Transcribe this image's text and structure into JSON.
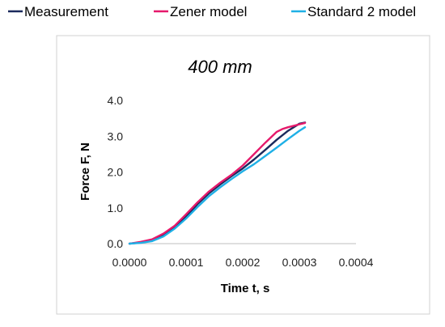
{
  "chart_data": {
    "type": "line",
    "title": "400 mm",
    "xlabel": "Time t, s",
    "ylabel": "Force F, N",
    "xlim": [
      0,
      0.0004
    ],
    "ylim": [
      0,
      4.0
    ],
    "x_ticks": [
      "0.0000",
      "0.0001",
      "0.0002",
      "0.0003",
      "0.0004"
    ],
    "y_ticks": [
      "0.0",
      "1.0",
      "2.0",
      "3.0",
      "4.0"
    ],
    "grid": false,
    "legend_position": "top",
    "series": [
      {
        "name": "Measurement",
        "color": "#1b2a5c",
        "x": [
          0,
          2e-05,
          4e-05,
          6e-05,
          8e-05,
          0.0001,
          0.00012,
          0.00014,
          0.00016,
          0.00018,
          0.0002,
          0.00022,
          0.00024,
          0.00026,
          0.00028,
          0.0003,
          0.00031
        ],
        "y": [
          0,
          0.03,
          0.1,
          0.25,
          0.45,
          0.75,
          1.1,
          1.4,
          1.65,
          1.88,
          2.1,
          2.35,
          2.62,
          2.9,
          3.15,
          3.35,
          3.38
        ]
      },
      {
        "name": "Zener model",
        "color": "#e6196b",
        "x": [
          0,
          2e-05,
          4e-05,
          6e-05,
          8e-05,
          0.0001,
          0.00012,
          0.00014,
          0.00016,
          0.00018,
          0.0002,
          0.00022,
          0.00024,
          0.00026,
          0.00027,
          0.00028,
          0.0003,
          0.00031
        ],
        "y": [
          0,
          0.05,
          0.12,
          0.28,
          0.5,
          0.82,
          1.15,
          1.45,
          1.7,
          1.92,
          2.18,
          2.5,
          2.82,
          3.12,
          3.2,
          3.25,
          3.33,
          3.37
        ]
      },
      {
        "name": "Standard 2 model",
        "color": "#1fb0e6",
        "x": [
          0,
          2e-05,
          4e-05,
          6e-05,
          8e-05,
          0.0001,
          0.00012,
          0.00014,
          0.00016,
          0.00018,
          0.0002,
          0.00022,
          0.00024,
          0.00026,
          0.00028,
          0.0003,
          0.00031
        ],
        "y": [
          0,
          0.02,
          0.07,
          0.2,
          0.42,
          0.7,
          1.02,
          1.32,
          1.57,
          1.8,
          2.02,
          2.22,
          2.45,
          2.68,
          2.92,
          3.15,
          3.25
        ]
      }
    ]
  }
}
